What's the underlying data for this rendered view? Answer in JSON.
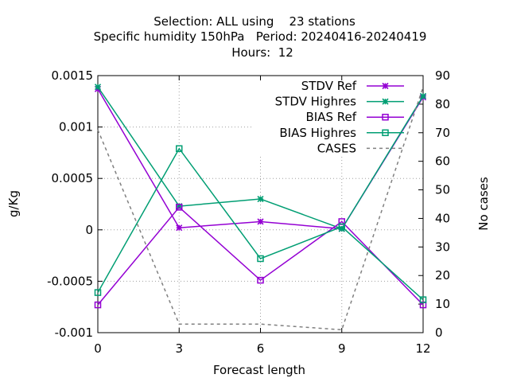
{
  "chart_data": {
    "type": "line",
    "title": "Selection: ALL using    23 stations",
    "subtitle": "Specific humidity 150hPa   Period: 20240416-20240419",
    "subtitle2": "Hours:  12",
    "xlabel": "Forecast length",
    "ylabel": "g/Kg",
    "y2label": "No cases",
    "x": [
      0,
      3,
      6,
      9,
      12
    ],
    "xticks": [
      "0",
      "3",
      "6",
      "9",
      "12"
    ],
    "xlim": [
      0,
      12
    ],
    "ylim": [
      -0.001,
      0.0015
    ],
    "yticks": [
      "-0.001",
      "-0.0005",
      "0",
      "0.0005",
      "0.001",
      "0.0015"
    ],
    "yticks_values": [
      -0.001,
      -0.0005,
      0,
      0.0005,
      0.001,
      0.0015
    ],
    "y2lim": [
      0,
      90
    ],
    "y2ticks": [
      "0",
      "10",
      "20",
      "30",
      "40",
      "50",
      "60",
      "70",
      "80",
      "90"
    ],
    "y2ticks_values": [
      0,
      10,
      20,
      30,
      40,
      50,
      60,
      70,
      80,
      90
    ],
    "grid": true,
    "legend_position": "top-right",
    "series": [
      {
        "name": "STDV Ref",
        "axis": "y1",
        "marker": "x",
        "color": "#9400d3",
        "values": [
          0.00137,
          2e-05,
          8e-05,
          1e-05,
          0.00129
        ]
      },
      {
        "name": "STDV Highres",
        "axis": "y1",
        "marker": "x",
        "color": "#009e73",
        "values": [
          0.00139,
          0.00023,
          0.0003,
          1e-05,
          0.0013
        ]
      },
      {
        "name": "BIAS Ref",
        "axis": "y1",
        "marker": "square",
        "color": "#9400d3",
        "values": [
          -0.00073,
          0.00022,
          -0.00049,
          8e-05,
          -0.00073
        ]
      },
      {
        "name": "BIAS Highres",
        "axis": "y1",
        "marker": "square",
        "color": "#009e73",
        "values": [
          -0.00061,
          0.00079,
          -0.00028,
          3e-05,
          -0.00068
        ]
      },
      {
        "name": "CASES",
        "axis": "y2",
        "marker": "none",
        "dashed": true,
        "color": "#808080",
        "values": [
          71,
          3,
          3,
          1,
          86
        ]
      }
    ]
  }
}
